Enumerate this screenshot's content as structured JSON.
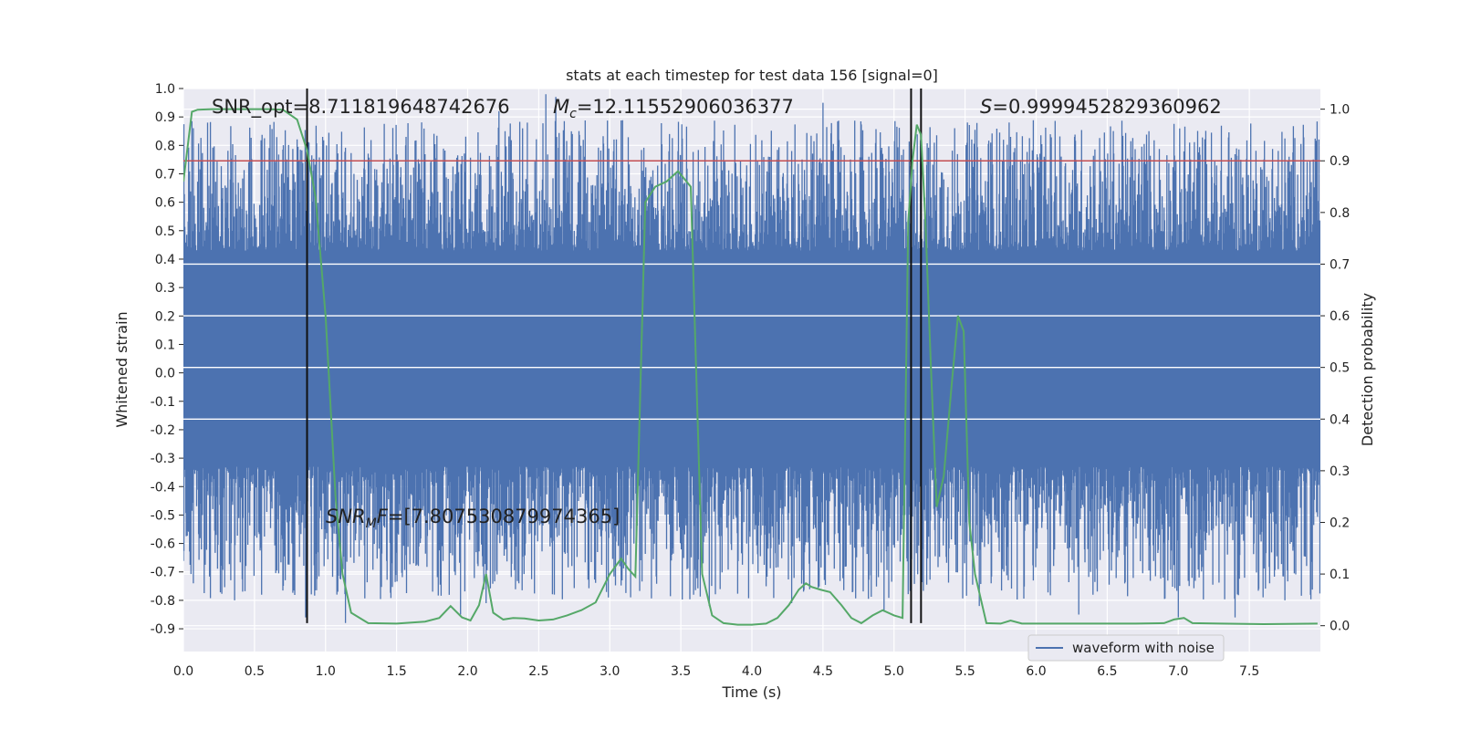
{
  "chart_data": {
    "type": "line",
    "title": "stats at each timestep for test data 156 [signal=0]",
    "xlabel": "Time (s)",
    "ylabel": "Whitened strain",
    "ylabel_right": "Detection probability",
    "xlim": [
      0.0,
      8.0
    ],
    "ylim": [
      -0.98,
      1.0
    ],
    "ylim_right": [
      -0.05,
      1.04
    ],
    "x_ticks": [
      "0.0",
      "0.5",
      "1.0",
      "1.5",
      "2.0",
      "2.5",
      "3.0",
      "3.5",
      "4.0",
      "4.5",
      "5.0",
      "5.5",
      "6.0",
      "6.5",
      "7.0",
      "7.5"
    ],
    "y_ticks": [
      "1.0",
      "0.9",
      "0.8",
      "0.7",
      "0.6",
      "0.5",
      "0.4",
      "0.3",
      "0.2",
      "0.1",
      "0.0",
      "-0.1",
      "-0.2",
      "-0.3",
      "-0.4",
      "-0.5",
      "-0.6",
      "-0.7",
      "-0.8",
      "-0.9"
    ],
    "y_ticks_right": [
      "1.0",
      "0.9",
      "0.8",
      "0.7",
      "0.6",
      "0.5",
      "0.4",
      "0.3",
      "0.2",
      "0.1",
      "0.0"
    ],
    "grid": true,
    "legend": {
      "position": "lower-right",
      "entries": [
        "waveform with noise"
      ]
    },
    "annotations": {
      "snr_opt": "SNR_opt=8.711819648742676",
      "mc": "=12.11552906036377",
      "s": "=0.9999452829360962",
      "snr_mf": "=[7.807530879974365]"
    },
    "threshold_right": 0.9,
    "vertical_lines_x": [
      0.87,
      5.12,
      5.19
    ],
    "waveform": {
      "name": "waveform with noise",
      "color": "#4c72b0",
      "band_y": [
        -0.33,
        0.43
      ],
      "spike_max": 0.97,
      "spike_min": -0.88,
      "peaks": [
        {
          "x": 0.07,
          "y": -0.74
        },
        {
          "x": 0.2,
          "y": 0.63
        },
        {
          "x": 0.33,
          "y": 0.68
        },
        {
          "x": 0.36,
          "y": -0.8
        },
        {
          "x": 0.55,
          "y": 0.61
        },
        {
          "x": 0.69,
          "y": 0.7
        },
        {
          "x": 0.86,
          "y": -0.86
        },
        {
          "x": 0.98,
          "y": 0.83
        },
        {
          "x": 1.14,
          "y": -0.88
        },
        {
          "x": 1.2,
          "y": 0.7
        },
        {
          "x": 1.95,
          "y": -0.85
        },
        {
          "x": 2.13,
          "y": -0.81
        },
        {
          "x": 2.22,
          "y": 0.92
        },
        {
          "x": 2.42,
          "y": 0.88
        },
        {
          "x": 2.55,
          "y": 0.98
        },
        {
          "x": 2.62,
          "y": 0.97
        },
        {
          "x": 3.42,
          "y": 0.84
        },
        {
          "x": 3.48,
          "y": 0.78
        },
        {
          "x": 3.7,
          "y": -0.82
        },
        {
          "x": 4.28,
          "y": -0.81
        },
        {
          "x": 4.5,
          "y": 0.95
        },
        {
          "x": 4.93,
          "y": -0.84
        },
        {
          "x": 5.6,
          "y": -0.82
        },
        {
          "x": 5.68,
          "y": 0.81
        },
        {
          "x": 5.77,
          "y": 0.82
        },
        {
          "x": 5.82,
          "y": 0.83
        },
        {
          "x": 6.27,
          "y": 0.83
        },
        {
          "x": 6.3,
          "y": -0.85
        },
        {
          "x": 7.0,
          "y": -0.86
        },
        {
          "x": 7.08,
          "y": 0.81
        },
        {
          "x": 7.4,
          "y": -0.86
        },
        {
          "x": 7.75,
          "y": -0.8
        },
        {
          "x": 7.78,
          "y": 0.76
        }
      ]
    },
    "detection_probability": {
      "color": "#55a868",
      "x": [
        0.0,
        0.06,
        0.1,
        0.2,
        0.3,
        0.4,
        0.5,
        0.6,
        0.7,
        0.8,
        0.87,
        0.93,
        1.0,
        1.07,
        1.12,
        1.18,
        1.3,
        1.5,
        1.7,
        1.8,
        1.88,
        1.96,
        2.02,
        2.08,
        2.13,
        2.18,
        2.25,
        2.32,
        2.4,
        2.5,
        2.6,
        2.7,
        2.8,
        2.9,
        3.0,
        3.08,
        3.13,
        3.18,
        3.25,
        3.32,
        3.4,
        3.48,
        3.57,
        3.65,
        3.72,
        3.8,
        3.9,
        4.0,
        4.1,
        4.18,
        4.26,
        4.33,
        4.38,
        4.42,
        4.48,
        4.55,
        4.63,
        4.7,
        4.77,
        4.85,
        4.92,
        5.0,
        5.06,
        5.1,
        5.13,
        5.16,
        5.19,
        5.22,
        5.26,
        5.3,
        5.35,
        5.4,
        5.45,
        5.49,
        5.53,
        5.57,
        5.65,
        5.75,
        5.82,
        5.9,
        6.1,
        6.4,
        6.7,
        6.9,
        6.97,
        7.04,
        7.1,
        7.3,
        7.6,
        7.98
      ],
      "y": [
        0.86,
        0.995,
        0.999,
        1.0,
        1.0,
        1.0,
        1.0,
        1.0,
        0.999,
        0.98,
        0.92,
        0.83,
        0.6,
        0.25,
        0.1,
        0.025,
        0.005,
        0.004,
        0.008,
        0.015,
        0.038,
        0.016,
        0.01,
        0.04,
        0.1,
        0.025,
        0.012,
        0.015,
        0.014,
        0.01,
        0.012,
        0.02,
        0.03,
        0.045,
        0.1,
        0.13,
        0.11,
        0.095,
        0.82,
        0.85,
        0.86,
        0.88,
        0.85,
        0.1,
        0.02,
        0.005,
        0.002,
        0.002,
        0.004,
        0.015,
        0.04,
        0.07,
        0.082,
        0.075,
        0.07,
        0.065,
        0.04,
        0.015,
        0.005,
        0.02,
        0.03,
        0.02,
        0.015,
        0.78,
        0.9,
        0.97,
        0.95,
        0.79,
        0.5,
        0.23,
        0.29,
        0.45,
        0.6,
        0.57,
        0.2,
        0.1,
        0.005,
        0.004,
        0.01,
        0.004,
        0.004,
        0.004,
        0.004,
        0.005,
        0.012,
        0.015,
        0.005,
        0.004,
        0.003,
        0.004
      ]
    }
  }
}
